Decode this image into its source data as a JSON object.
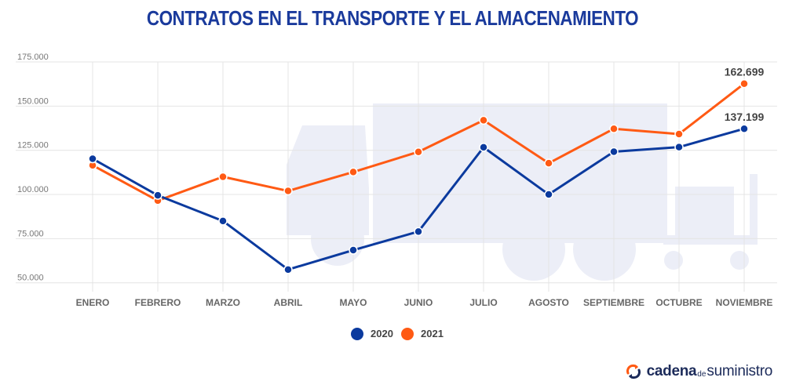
{
  "chart_data": {
    "type": "line",
    "title": "CONTRATOS EN EL TRANSPORTE Y EL ALMACENAMIENTO",
    "categories": [
      "ENERO",
      "FEBRERO",
      "MARZO",
      "ABRIL",
      "MAYO",
      "JUNIO",
      "JULIO",
      "AGOSTO",
      "SEPTIEMBRE",
      "OCTUBRE",
      "NOVIEMBRE"
    ],
    "ylim": [
      45000,
      175000
    ],
    "yticks": [
      50000,
      75000,
      100000,
      125000,
      150000,
      175000
    ],
    "ytick_labels": [
      "50.000",
      "75.000",
      "100.000",
      "125.000",
      "150.000",
      "175.000"
    ],
    "grid": true,
    "legend_position": "bottom-center",
    "series": [
      {
        "name": "2020",
        "color": "#0b3a9e",
        "values": [
          120200,
          99500,
          85000,
          57500,
          68500,
          79000,
          126700,
          100000,
          124200,
          126800,
          137199
        ]
      },
      {
        "name": "2021",
        "color": "#ff5a14",
        "values": [
          116500,
          96500,
          110000,
          102000,
          112700,
          124100,
          142000,
          117700,
          137200,
          134200,
          162699
        ]
      }
    ],
    "annotations": [
      {
        "series": "2021",
        "category": "NOVIEMBRE",
        "text": "162.699"
      },
      {
        "series": "2020",
        "category": "NOVIEMBRE",
        "text": "137.199"
      }
    ]
  },
  "brand": {
    "part1": "cadena",
    "part2": "de",
    "part3": "suministro",
    "icon": "cycle-arrows-icon"
  }
}
